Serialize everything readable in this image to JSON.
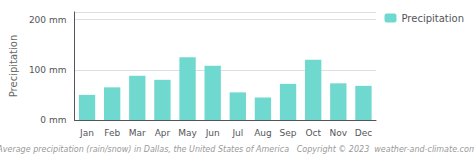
{
  "chart_data": {
    "type": "bar",
    "categories": [
      "Jan",
      "Feb",
      "Mar",
      "Apr",
      "May",
      "Jun",
      "Jul",
      "Aug",
      "Sep",
      "Oct",
      "Nov",
      "Dec"
    ],
    "series": [
      {
        "name": "Precipitation",
        "color": "#6FD9D0",
        "values": [
          50,
          65,
          88,
          80,
          125,
          108,
          55,
          45,
          72,
          120,
          73,
          68
        ]
      }
    ],
    "ylabel": "Precipitation",
    "ylim": [
      0,
      215
    ],
    "yticks": [
      {
        "value": 0,
        "label": "0 mm"
      },
      {
        "value": 100,
        "label": "100 mm"
      },
      {
        "value": 200,
        "label": "200 mm"
      }
    ],
    "grid": true,
    "legend": "right",
    "annotations": [
      "Average precipitation (rain/snow) in Dallas, the United States of America   Copyright © 2023  weather-and-climate.com"
    ]
  }
}
